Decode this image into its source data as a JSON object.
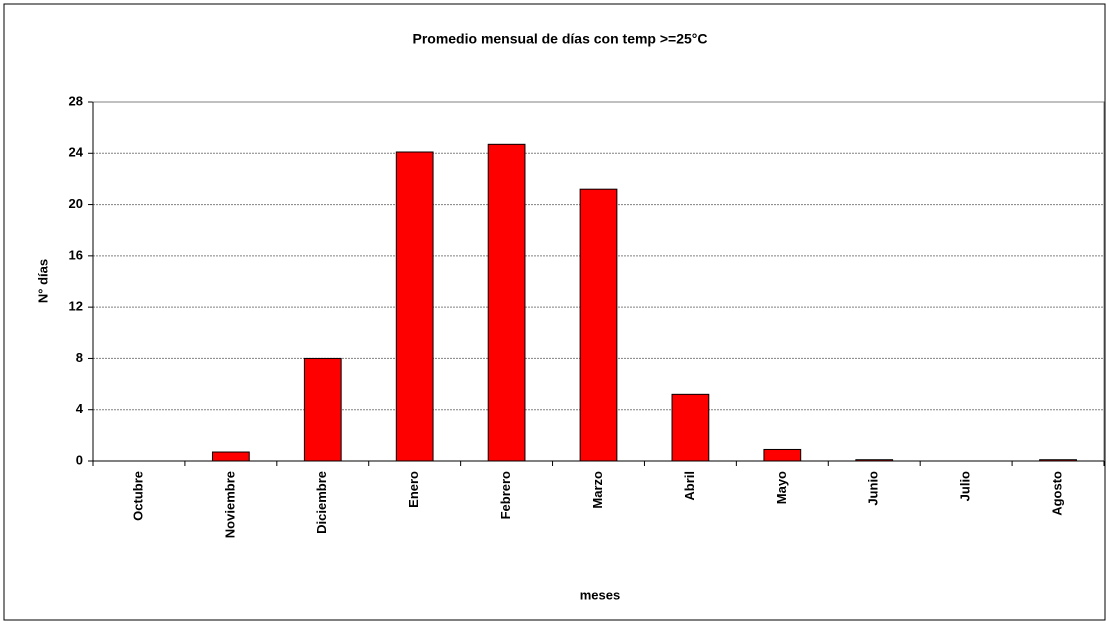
{
  "chart_data": {
    "type": "bar",
    "title": "Promedio mensual de días con temp >=25°C",
    "x_label": "meses",
    "y_label": "N° días",
    "categories": [
      "Octubre",
      "Noviembre",
      "Diciembre",
      "Enero",
      "Febrero",
      "Marzo",
      "Abril",
      "Mayo",
      "Junio",
      "Julio",
      "Agosto"
    ],
    "values": [
      0,
      0.7,
      8.0,
      24.1,
      24.7,
      21.2,
      5.2,
      0.9,
      0.1,
      0,
      0.1
    ],
    "color": "#ff0000",
    "ylim": [
      0,
      28
    ],
    "yticks": [
      0,
      4,
      8,
      12,
      16,
      20,
      24,
      28
    ],
    "grid": true
  }
}
